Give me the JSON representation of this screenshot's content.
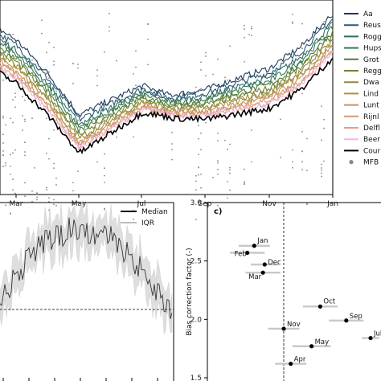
{
  "chart_data": [
    {
      "type": "line",
      "panel": "top",
      "x_ticks": [
        "Mar",
        "May",
        "Jul",
        "Sep",
        "Nov",
        "Jan"
      ],
      "legend": {
        "placement": "right",
        "entries": [
          {
            "label": "Aa",
            "color": "#1b3a5a"
          },
          {
            "label": "Reuss",
            "color": "#2a5872"
          },
          {
            "label": "Rogg",
            "color": "#2f6e66"
          },
          {
            "label": "Hups",
            "color": "#3a7a58"
          },
          {
            "label": "Grot",
            "color": "#4f7f3a"
          },
          {
            "label": "Regg",
            "color": "#6b8434"
          },
          {
            "label": "Dwa",
            "color": "#8f8b3b"
          },
          {
            "label": "Lind",
            "color": "#b08e44"
          },
          {
            "label": "Lunt",
            "color": "#c49357"
          },
          {
            "label": "Rijnl",
            "color": "#d49a70"
          },
          {
            "label": "Delfl",
            "color": "#e0a08c"
          },
          {
            "label": "Beer",
            "color": "#f0b8d8"
          },
          {
            "label": "Cour",
            "color": "#000000"
          },
          {
            "label": "MFB",
            "color": "#888888",
            "marker": "dot"
          }
        ]
      },
      "series_offsets": [
        0.28,
        0.24,
        0.2,
        0.17,
        0.14,
        0.11,
        0.08,
        0.06,
        0.03,
        0.01,
        -0.01,
        -0.02,
        -0.06
      ],
      "base_curve": {
        "x": [
          "Jan",
          "Feb",
          "Mar",
          "Apr",
          "May",
          "Jun",
          "Jul",
          "Aug",
          "Sep",
          "Oct",
          "Nov",
          "Dec",
          "Jan"
        ],
        "y": [
          2.55,
          2.45,
          2.3,
          2.05,
          1.75,
          1.9,
          2.05,
          2.0,
          2.0,
          2.05,
          2.1,
          2.25,
          2.5
        ]
      }
    },
    {
      "type": "line",
      "panel": "bottom-left",
      "legend": {
        "placement": "top-right",
        "entries": [
          {
            "label": "Median",
            "color": "#000000"
          },
          {
            "label": "IQR",
            "color": "#bbbbbb"
          }
        ]
      },
      "reference_line": "dashed"
    },
    {
      "type": "scatter",
      "panel": "c)",
      "panel_label": "c)",
      "ylabel": "Bias correction factor (-)",
      "ylim": [
        1.5,
        3.0
      ],
      "y_ticks": [
        "1.5",
        "2.0",
        "2.5",
        "3.0"
      ],
      "points": [
        {
          "label": "Jan",
          "x": 0.27,
          "y": 2.63
        },
        {
          "label": "Feb",
          "x": 0.23,
          "y": 2.57
        },
        {
          "label": "Dec",
          "x": 0.33,
          "y": 2.47
        },
        {
          "label": "Mar",
          "x": 0.32,
          "y": 2.4
        },
        {
          "label": "Oct",
          "x": 0.65,
          "y": 2.11
        },
        {
          "label": "Sep",
          "x": 0.8,
          "y": 1.99
        },
        {
          "label": "Nov",
          "x": 0.44,
          "y": 1.92
        },
        {
          "label": "Jul",
          "x": 0.94,
          "y": 1.84
        },
        {
          "label": "May",
          "x": 0.6,
          "y": 1.77
        },
        {
          "label": "Apr",
          "x": 0.48,
          "y": 1.62
        }
      ],
      "x_spread": [
        0.09,
        0.1,
        0.08,
        0.1,
        0.1,
        0.1,
        0.09,
        0.05,
        0.11,
        0.09
      ],
      "vertical_reference": 0.5
    }
  ]
}
